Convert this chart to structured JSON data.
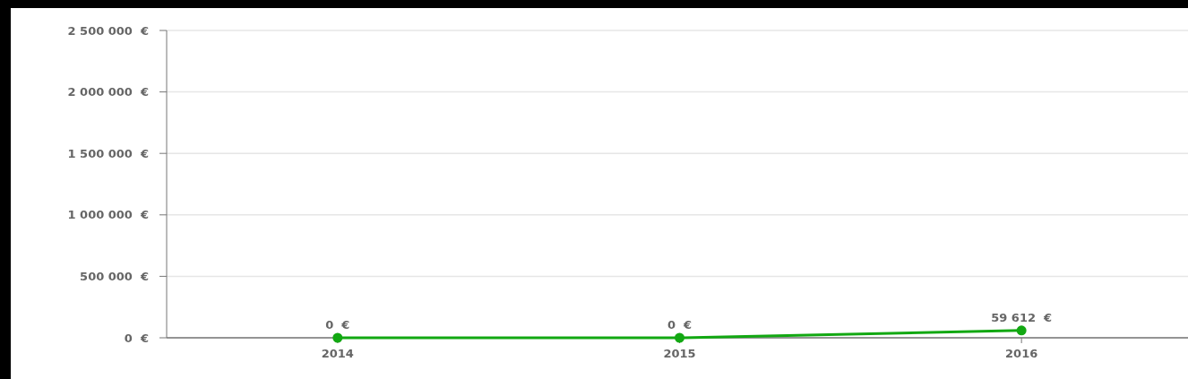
{
  "chart_data": {
    "type": "line",
    "categories": [
      "2014",
      "2015",
      "2016"
    ],
    "series": [
      {
        "color": "#12a812",
        "values": [
          0,
          0,
          59612
        ],
        "value_labels": [
          "0  €",
          "0  €",
          "59 612  €"
        ]
      }
    ],
    "ylim": [
      0,
      2500000
    ],
    "yticks": [
      {
        "value": 0,
        "label": "0  €"
      },
      {
        "value": 500000,
        "label": "500 000  €"
      },
      {
        "value": 1000000,
        "label": "1 000 000  €"
      },
      {
        "value": 1500000,
        "label": "1 500 000  €"
      },
      {
        "value": 2000000,
        "label": "2 000 000  €"
      },
      {
        "value": 2500000,
        "label": "2 500 000  €"
      }
    ],
    "grid": "y",
    "marker": "circle",
    "line_style": "solid"
  }
}
